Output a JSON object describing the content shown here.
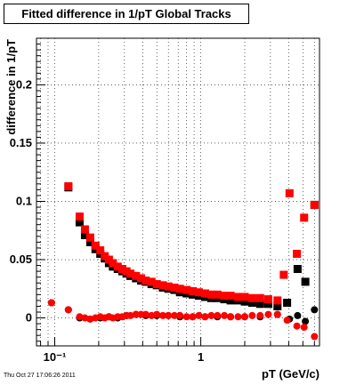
{
  "chart_data": {
    "type": "scatter",
    "title": "Fitted difference in 1/pT  Global Tracks",
    "xlabel": "pT (GeV/c)",
    "ylabel": "difference in 1/pT",
    "x_scale": "log",
    "xlim": [
      0.075,
      6.5
    ],
    "ylim": [
      -0.024,
      0.24
    ],
    "grid": true,
    "x_tick_labels": [
      {
        "value": 0.1,
        "label": "10⁻¹"
      },
      {
        "value": 1,
        "label": "1"
      }
    ],
    "y_tick_labels": [
      {
        "value": 0,
        "label": "0"
      },
      {
        "value": 0.05,
        "label": "0.05"
      },
      {
        "value": 0.1,
        "label": "0.1"
      },
      {
        "value": 0.15,
        "label": "0.15"
      },
      {
        "value": 0.2,
        "label": "0.2"
      }
    ],
    "series": [
      {
        "color": "#000000",
        "marker": "square",
        "points": [
          [
            0.124,
            0.112
          ],
          [
            0.148,
            0.082
          ],
          [
            0.161,
            0.071
          ],
          [
            0.175,
            0.065
          ],
          [
            0.19,
            0.059
          ],
          [
            0.205,
            0.055
          ],
          [
            0.22,
            0.051
          ],
          [
            0.235,
            0.047
          ],
          [
            0.25,
            0.044
          ],
          [
            0.27,
            0.042
          ],
          [
            0.29,
            0.04
          ],
          [
            0.31,
            0.038
          ],
          [
            0.33,
            0.036
          ],
          [
            0.36,
            0.034
          ],
          [
            0.39,
            0.032
          ],
          [
            0.42,
            0.031
          ],
          [
            0.46,
            0.029
          ],
          [
            0.5,
            0.028
          ],
          [
            0.55,
            0.026
          ],
          [
            0.6,
            0.025
          ],
          [
            0.66,
            0.024
          ],
          [
            0.72,
            0.022
          ],
          [
            0.8,
            0.021
          ],
          [
            0.88,
            0.02
          ],
          [
            0.97,
            0.019
          ],
          [
            1.07,
            0.018
          ],
          [
            1.18,
            0.017
          ],
          [
            1.3,
            0.017
          ],
          [
            1.45,
            0.016
          ],
          [
            1.6,
            0.015
          ],
          [
            1.8,
            0.015
          ],
          [
            2.0,
            0.014
          ],
          [
            2.25,
            0.013
          ],
          [
            2.55,
            0.012
          ],
          [
            2.9,
            0.012
          ],
          [
            3.35,
            0.01
          ],
          [
            3.9,
            0.013
          ],
          [
            4.6,
            0.042
          ],
          [
            5.2,
            0.031
          ],
          [
            6.0,
            0.097
          ]
        ]
      },
      {
        "color": "#ff0000",
        "marker": "square",
        "points": [
          [
            0.124,
            0.113
          ],
          [
            0.148,
            0.087
          ],
          [
            0.161,
            0.076
          ],
          [
            0.175,
            0.069
          ],
          [
            0.19,
            0.062
          ],
          [
            0.205,
            0.058
          ],
          [
            0.22,
            0.053
          ],
          [
            0.235,
            0.05
          ],
          [
            0.25,
            0.047
          ],
          [
            0.27,
            0.044
          ],
          [
            0.29,
            0.042
          ],
          [
            0.31,
            0.04
          ],
          [
            0.33,
            0.038
          ],
          [
            0.36,
            0.036
          ],
          [
            0.39,
            0.034
          ],
          [
            0.42,
            0.032
          ],
          [
            0.46,
            0.031
          ],
          [
            0.5,
            0.029
          ],
          [
            0.55,
            0.028
          ],
          [
            0.6,
            0.027
          ],
          [
            0.66,
            0.026
          ],
          [
            0.72,
            0.025
          ],
          [
            0.8,
            0.024
          ],
          [
            0.88,
            0.023
          ],
          [
            0.97,
            0.022
          ],
          [
            1.07,
            0.021
          ],
          [
            1.18,
            0.02
          ],
          [
            1.3,
            0.02
          ],
          [
            1.45,
            0.019
          ],
          [
            1.6,
            0.019
          ],
          [
            1.8,
            0.018
          ],
          [
            2.0,
            0.018
          ],
          [
            2.25,
            0.017
          ],
          [
            2.55,
            0.017
          ],
          [
            2.9,
            0.016
          ],
          [
            3.35,
            0.015
          ],
          [
            3.7,
            0.037
          ],
          [
            4.05,
            0.107
          ],
          [
            4.55,
            0.055
          ],
          [
            5.1,
            0.086
          ],
          [
            6.0,
            0.097
          ]
        ]
      },
      {
        "color": "#000000",
        "marker": "circle",
        "points": [
          [
            0.095,
            0.013
          ],
          [
            0.124,
            0.007
          ],
          [
            0.148,
            0.0
          ],
          [
            0.175,
            -0.001
          ],
          [
            0.205,
            0.0
          ],
          [
            0.235,
            0.001
          ],
          [
            0.27,
            0.0
          ],
          [
            0.31,
            0.002
          ],
          [
            0.36,
            0.003
          ],
          [
            0.42,
            0.002
          ],
          [
            0.5,
            0.002
          ],
          [
            0.6,
            0.002
          ],
          [
            0.72,
            0.001
          ],
          [
            0.88,
            0.001
          ],
          [
            1.07,
            0.001
          ],
          [
            1.3,
            0.001
          ],
          [
            1.6,
            0.001
          ],
          [
            2.0,
            0.001
          ],
          [
            2.55,
            0.001
          ],
          [
            3.35,
            0.003
          ],
          [
            4.05,
            -0.001
          ],
          [
            4.6,
            0.002
          ],
          [
            5.2,
            -0.003
          ],
          [
            6.0,
            0.007
          ]
        ]
      },
      {
        "color": "#ff0000",
        "marker": "circle",
        "points": [
          [
            0.095,
            0.013
          ],
          [
            0.124,
            0.007
          ],
          [
            0.148,
            0.001
          ],
          [
            0.161,
            0.0
          ],
          [
            0.175,
            -0.001
          ],
          [
            0.19,
            0.0
          ],
          [
            0.205,
            0.001
          ],
          [
            0.22,
            0.0
          ],
          [
            0.235,
            0.001
          ],
          [
            0.25,
            0.0
          ],
          [
            0.27,
            0.001
          ],
          [
            0.29,
            0.001
          ],
          [
            0.31,
            0.002
          ],
          [
            0.33,
            0.002
          ],
          [
            0.36,
            0.003
          ],
          [
            0.39,
            0.003
          ],
          [
            0.42,
            0.003
          ],
          [
            0.46,
            0.002
          ],
          [
            0.5,
            0.003
          ],
          [
            0.55,
            0.002
          ],
          [
            0.6,
            0.002
          ],
          [
            0.66,
            0.002
          ],
          [
            0.72,
            0.002
          ],
          [
            0.8,
            0.001
          ],
          [
            0.88,
            0.001
          ],
          [
            0.97,
            0.002
          ],
          [
            1.07,
            0.001
          ],
          [
            1.18,
            0.002
          ],
          [
            1.3,
            0.002
          ],
          [
            1.45,
            0.002
          ],
          [
            1.6,
            0.001
          ],
          [
            1.8,
            0.001
          ],
          [
            2.0,
            0.001
          ],
          [
            2.25,
            0.002
          ],
          [
            2.55,
            0.002
          ],
          [
            2.9,
            0.003
          ],
          [
            3.35,
            0.003
          ],
          [
            3.9,
            -0.002
          ],
          [
            4.55,
            -0.007
          ],
          [
            5.1,
            -0.008
          ],
          [
            6.0,
            -0.016
          ]
        ]
      }
    ]
  },
  "footer": {
    "timestamp": "Thu Oct 27 17:06:26 2011"
  }
}
